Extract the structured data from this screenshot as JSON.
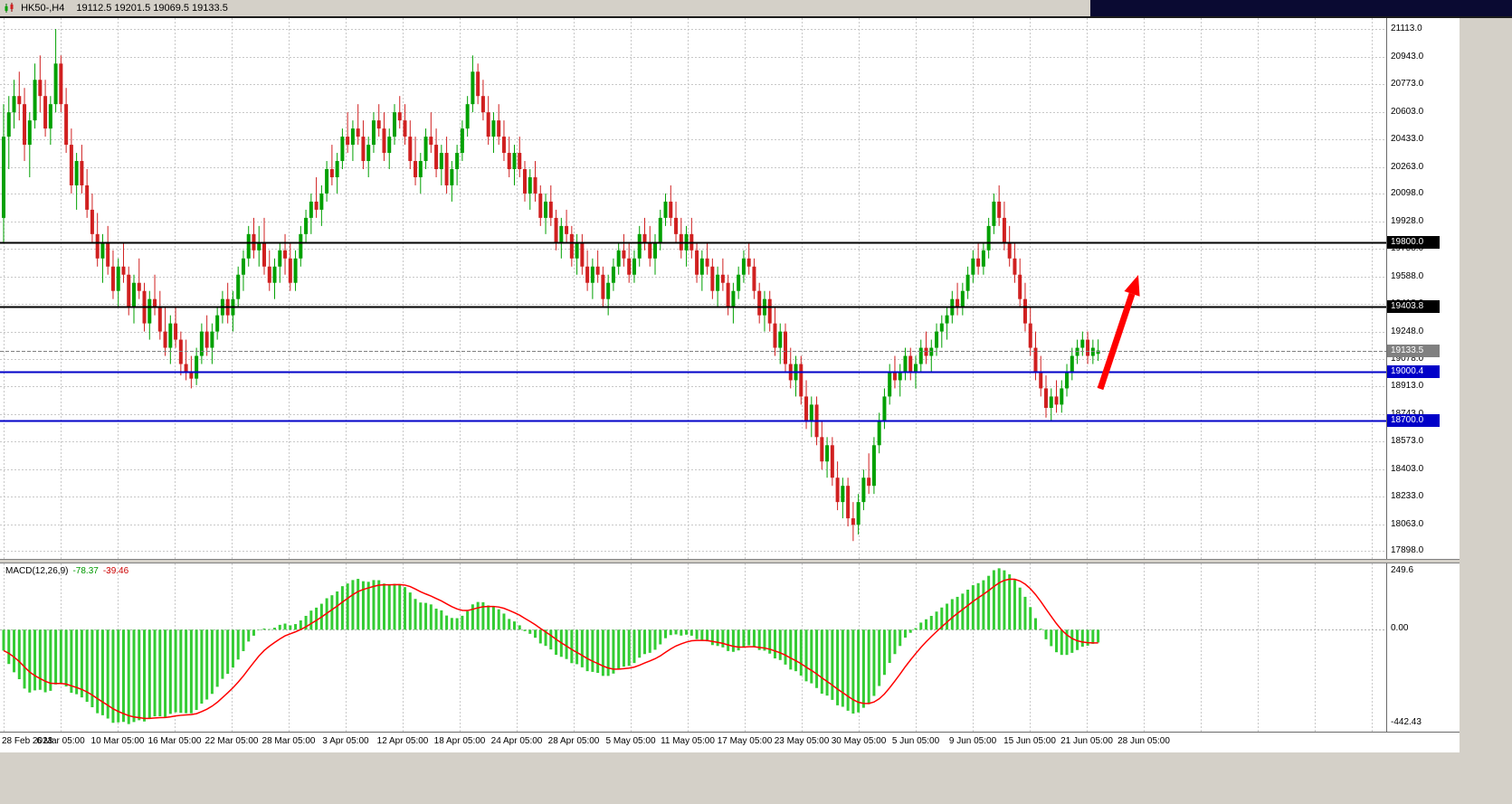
{
  "title_bar": {
    "symbol": "HK50-,H4",
    "ohlc_text": "19112.5 19201.5 19069.5 19133.5"
  },
  "colors": {
    "bull": "#00A000",
    "bear": "#D02020",
    "grid": "#C8C8C8",
    "background": "#FFFFFF",
    "chrome": "#D4D0C8",
    "histogram": "#33CC33",
    "signal_line": "#FF0000",
    "level_black": "#000000",
    "level_blue": "#0000C8",
    "current_price": "#808080",
    "arrow": "#FF0000",
    "top_bar_dark": "#0A0A32"
  },
  "macd": {
    "label": "MACD(12,26,9)",
    "value_main": "-78.37",
    "value_signal": "-39.46",
    "ticks": [
      "249.6",
      "0.00",
      "-442.43"
    ]
  },
  "chart_data": {
    "type": "candlestick",
    "symbol": "HK50-",
    "timeframe": "H4",
    "title": "HK50-,H4 19112.5 19201.5 19069.5 19133.5",
    "last_ohlc": {
      "open": 19112.5,
      "high": 19201.5,
      "low": 19069.5,
      "close": 19133.5
    },
    "ylim": [
      17850,
      21180
    ],
    "grid": "dashed",
    "price_ticks": [
      "21113.0",
      "20943.0",
      "20773.0",
      "20603.0",
      "20433.0",
      "20263.0",
      "20098.0",
      "19928.0",
      "19758.0",
      "19588.0",
      "19418.0",
      "19248.0",
      "19078.0",
      "18913.0",
      "18743.0",
      "18573.0",
      "18403.0",
      "18233.0",
      "18063.0",
      "17898.0"
    ],
    "x_labels": [
      "28 Feb 2023",
      "6 Mar 05:00",
      "10 Mar 05:00",
      "16 Mar 05:00",
      "22 Mar 05:00",
      "28 Mar 05:00",
      "3 Apr 05:00",
      "12 Apr 05:00",
      "18 Apr 05:00",
      "24 Apr 05:00",
      "28 Apr 05:00",
      "5 May 05:00",
      "11 May 05:00",
      "17 May 05:00",
      "23 May 05:00",
      "30 May 05:00",
      "5 Jun 05:00",
      "9 Jun 05:00",
      "15 Jun 05:00",
      "21 Jun 05:00",
      "28 Jun 05:00"
    ],
    "horizontal_lines": [
      {
        "price": 19800.0,
        "label": "19800.0",
        "color_key": "level_black",
        "width": 2,
        "style": "level"
      },
      {
        "price": 19403.8,
        "label": "19403.8",
        "color_key": "level_black",
        "width": 2,
        "style": "level"
      },
      {
        "price": 19133.5,
        "label": "19133.5",
        "color_key": "current_price",
        "width": 1,
        "style": "current"
      },
      {
        "price": 19000.4,
        "label": "19000.4",
        "color_key": "level_blue",
        "width": 2,
        "style": "level"
      },
      {
        "price": 18700.0,
        "label": "18700.0",
        "color_key": "level_blue",
        "width": 2,
        "style": "level"
      }
    ],
    "annotations": [
      {
        "type": "arrow",
        "from": [
          1216,
          410
        ],
        "to": [
          1258,
          284
        ],
        "color_key": "arrow"
      }
    ],
    "indicator": {
      "type": "macd",
      "fast": 12,
      "slow": 26,
      "signal": 9,
      "seed_close": 21600
    },
    "macd_axis": {
      "ylim": [
        -442.43,
        249.6
      ],
      "zero": 0.0
    },
    "candles": [
      [
        19950,
        20650,
        19800,
        20450
      ],
      [
        20450,
        20700,
        20250,
        20600
      ],
      [
        20600,
        20800,
        20500,
        20700
      ],
      [
        20700,
        20850,
        20550,
        20650
      ],
      [
        20650,
        20750,
        20300,
        20400
      ],
      [
        20400,
        20600,
        20200,
        20550
      ],
      [
        20550,
        20900,
        20500,
        20800
      ],
      [
        20800,
        20950,
        20600,
        20700
      ],
      [
        20700,
        20800,
        20450,
        20500
      ],
      [
        20500,
        20700,
        20400,
        20650
      ],
      [
        20650,
        21113,
        20600,
        20900
      ],
      [
        20900,
        20950,
        20600,
        20650
      ],
      [
        20650,
        20750,
        20350,
        20400
      ],
      [
        20400,
        20500,
        20100,
        20150
      ],
      [
        20150,
        20350,
        20000,
        20300
      ],
      [
        20300,
        20400,
        20100,
        20150
      ],
      [
        20150,
        20250,
        19950,
        20000
      ],
      [
        20000,
        20100,
        19800,
        19850
      ],
      [
        19850,
        19980,
        19650,
        19700
      ],
      [
        19700,
        19850,
        19550,
        19800
      ],
      [
        19800,
        19900,
        19600,
        19650
      ],
      [
        19650,
        19750,
        19450,
        19500
      ],
      [
        19500,
        19700,
        19400,
        19650
      ],
      [
        19650,
        19800,
        19550,
        19600
      ],
      [
        19600,
        19650,
        19350,
        19400
      ],
      [
        19400,
        19600,
        19300,
        19550
      ],
      [
        19550,
        19700,
        19450,
        19500
      ],
      [
        19500,
        19550,
        19250,
        19300
      ],
      [
        19300,
        19500,
        19200,
        19450
      ],
      [
        19450,
        19600,
        19350,
        19400
      ],
      [
        19400,
        19500,
        19200,
        19250
      ],
      [
        19250,
        19400,
        19100,
        19150
      ],
      [
        19150,
        19350,
        19050,
        19300
      ],
      [
        19300,
        19400,
        19150,
        19200
      ],
      [
        19200,
        19250,
        18980,
        19050
      ],
      [
        19050,
        19200,
        18950,
        19000
      ],
      [
        19000,
        19100,
        18900,
        18960
      ],
      [
        18960,
        19150,
        18920,
        19100
      ],
      [
        19100,
        19300,
        19050,
        19250
      ],
      [
        19250,
        19350,
        19100,
        19150
      ],
      [
        19150,
        19300,
        19050,
        19250
      ],
      [
        19250,
        19400,
        19200,
        19350
      ],
      [
        19350,
        19500,
        19300,
        19450
      ],
      [
        19450,
        19550,
        19300,
        19350
      ],
      [
        19350,
        19500,
        19250,
        19450
      ],
      [
        19450,
        19650,
        19400,
        19600
      ],
      [
        19600,
        19750,
        19500,
        19700
      ],
      [
        19700,
        19900,
        19650,
        19850
      ],
      [
        19850,
        19950,
        19700,
        19750
      ],
      [
        19750,
        19900,
        19650,
        19800
      ],
      [
        19800,
        19950,
        19600,
        19650
      ],
      [
        19650,
        19750,
        19500,
        19550
      ],
      [
        19550,
        19700,
        19450,
        19650
      ],
      [
        19650,
        19800,
        19550,
        19750
      ],
      [
        19750,
        19850,
        19600,
        19700
      ],
      [
        19700,
        19800,
        19500,
        19550
      ],
      [
        19550,
        19750,
        19500,
        19700
      ],
      [
        19700,
        19900,
        19650,
        19850
      ],
      [
        19850,
        20000,
        19800,
        19950
      ],
      [
        19950,
        20100,
        19850,
        20050
      ],
      [
        20050,
        20200,
        19950,
        20000
      ],
      [
        20000,
        20150,
        19900,
        20100
      ],
      [
        20100,
        20300,
        20050,
        20250
      ],
      [
        20250,
        20400,
        20150,
        20200
      ],
      [
        20200,
        20350,
        20100,
        20300
      ],
      [
        20300,
        20500,
        20250,
        20450
      ],
      [
        20450,
        20600,
        20350,
        20400
      ],
      [
        20400,
        20550,
        20300,
        20500
      ],
      [
        20500,
        20650,
        20400,
        20450
      ],
      [
        20450,
        20550,
        20250,
        20300
      ],
      [
        20300,
        20450,
        20200,
        20400
      ],
      [
        20400,
        20600,
        20350,
        20550
      ],
      [
        20550,
        20650,
        20450,
        20500
      ],
      [
        20500,
        20600,
        20300,
        20350
      ],
      [
        20350,
        20500,
        20250,
        20450
      ],
      [
        20450,
        20650,
        20400,
        20600
      ],
      [
        20600,
        20700,
        20500,
        20550
      ],
      [
        20550,
        20650,
        20400,
        20450
      ],
      [
        20450,
        20550,
        20250,
        20300
      ],
      [
        20300,
        20450,
        20150,
        20200
      ],
      [
        20200,
        20350,
        20100,
        20300
      ],
      [
        20300,
        20500,
        20250,
        20450
      ],
      [
        20450,
        20600,
        20350,
        20400
      ],
      [
        20400,
        20500,
        20200,
        20250
      ],
      [
        20250,
        20400,
        20150,
        20350
      ],
      [
        20350,
        20450,
        20100,
        20150
      ],
      [
        20150,
        20300,
        20050,
        20250
      ],
      [
        20250,
        20400,
        20150,
        20350
      ],
      [
        20350,
        20550,
        20300,
        20500
      ],
      [
        20500,
        20700,
        20450,
        20650
      ],
      [
        20650,
        20950,
        20600,
        20850
      ],
      [
        20850,
        20900,
        20650,
        20700
      ],
      [
        20700,
        20800,
        20550,
        20600
      ],
      [
        20600,
        20700,
        20400,
        20450
      ],
      [
        20450,
        20600,
        20350,
        20550
      ],
      [
        20550,
        20650,
        20400,
        20450
      ],
      [
        20450,
        20550,
        20300,
        20350
      ],
      [
        20350,
        20450,
        20200,
        20250
      ],
      [
        20250,
        20400,
        20150,
        20350
      ],
      [
        20350,
        20450,
        20200,
        20250
      ],
      [
        20250,
        20300,
        20050,
        20100
      ],
      [
        20100,
        20250,
        20000,
        20200
      ],
      [
        20200,
        20300,
        20050,
        20100
      ],
      [
        20100,
        20150,
        19900,
        19950
      ],
      [
        19950,
        20100,
        19850,
        20050
      ],
      [
        20050,
        20150,
        19900,
        19950
      ],
      [
        19950,
        20000,
        19750,
        19800
      ],
      [
        19800,
        19950,
        19700,
        19900
      ],
      [
        19900,
        20000,
        19800,
        19850
      ],
      [
        19850,
        19900,
        19650,
        19700
      ],
      [
        19700,
        19850,
        19600,
        19800
      ],
      [
        19800,
        19850,
        19600,
        19650
      ],
      [
        19650,
        19750,
        19500,
        19550
      ],
      [
        19550,
        19700,
        19450,
        19650
      ],
      [
        19650,
        19750,
        19550,
        19600
      ],
      [
        19600,
        19650,
        19400,
        19450
      ],
      [
        19450,
        19600,
        19350,
        19550
      ],
      [
        19550,
        19700,
        19500,
        19650
      ],
      [
        19650,
        19800,
        19600,
        19750
      ],
      [
        19750,
        19850,
        19650,
        19700
      ],
      [
        19700,
        19800,
        19550,
        19600
      ],
      [
        19600,
        19750,
        19550,
        19700
      ],
      [
        19700,
        19900,
        19650,
        19850
      ],
      [
        19850,
        19950,
        19750,
        19800
      ],
      [
        19800,
        19900,
        19650,
        19700
      ],
      [
        19700,
        19850,
        19600,
        19800
      ],
      [
        19800,
        20000,
        19750,
        19950
      ],
      [
        19950,
        20100,
        19900,
        20050
      ],
      [
        20050,
        20150,
        19900,
        19950
      ],
      [
        19950,
        20050,
        19800,
        19850
      ],
      [
        19850,
        19950,
        19700,
        19750
      ],
      [
        19750,
        19900,
        19650,
        19850
      ],
      [
        19850,
        19950,
        19700,
        19750
      ],
      [
        19750,
        19800,
        19550,
        19600
      ],
      [
        19600,
        19750,
        19500,
        19700
      ],
      [
        19700,
        19800,
        19600,
        19650
      ],
      [
        19650,
        19700,
        19450,
        19500
      ],
      [
        19500,
        19650,
        19400,
        19600
      ],
      [
        19600,
        19700,
        19500,
        19550
      ],
      [
        19550,
        19600,
        19350,
        19400
      ],
      [
        19400,
        19550,
        19300,
        19500
      ],
      [
        19500,
        19650,
        19450,
        19600
      ],
      [
        19600,
        19750,
        19550,
        19700
      ],
      [
        19700,
        19800,
        19600,
        19650
      ],
      [
        19650,
        19700,
        19450,
        19500
      ],
      [
        19500,
        19550,
        19300,
        19350
      ],
      [
        19350,
        19500,
        19250,
        19450
      ],
      [
        19450,
        19500,
        19250,
        19300
      ],
      [
        19300,
        19400,
        19100,
        19150
      ],
      [
        19150,
        19300,
        19050,
        19250
      ],
      [
        19250,
        19300,
        19000,
        19050
      ],
      [
        19050,
        19150,
        18900,
        18950
      ],
      [
        18950,
        19100,
        18850,
        19050
      ],
      [
        19050,
        19100,
        18800,
        18850
      ],
      [
        18850,
        18950,
        18650,
        18700
      ],
      [
        18700,
        18850,
        18600,
        18800
      ],
      [
        18800,
        18850,
        18550,
        18600
      ],
      [
        18600,
        18700,
        18400,
        18450
      ],
      [
        18450,
        18600,
        18350,
        18550
      ],
      [
        18550,
        18600,
        18300,
        18350
      ],
      [
        18350,
        18450,
        18150,
        18200
      ],
      [
        18200,
        18350,
        18100,
        18300
      ],
      [
        18300,
        18350,
        18050,
        18100
      ],
      [
        18100,
        18200,
        17960,
        18060
      ],
      [
        18060,
        18250,
        18000,
        18200
      ],
      [
        18200,
        18400,
        18150,
        18350
      ],
      [
        18350,
        18500,
        18250,
        18300
      ],
      [
        18300,
        18600,
        18250,
        18550
      ],
      [
        18550,
        18750,
        18500,
        18700
      ],
      [
        18700,
        18900,
        18650,
        18850
      ],
      [
        18850,
        19050,
        18800,
        19000
      ],
      [
        19000,
        19100,
        18900,
        18950
      ],
      [
        18950,
        19050,
        18850,
        19000
      ],
      [
        19000,
        19150,
        18950,
        19100
      ],
      [
        19100,
        19150,
        18950,
        19000
      ],
      [
        19000,
        19100,
        18900,
        19050
      ],
      [
        19050,
        19200,
        19000,
        19150
      ],
      [
        19150,
        19250,
        19050,
        19100
      ],
      [
        19100,
        19200,
        19000,
        19150
      ],
      [
        19150,
        19300,
        19100,
        19250
      ],
      [
        19250,
        19350,
        19150,
        19300
      ],
      [
        19300,
        19400,
        19200,
        19350
      ],
      [
        19350,
        19500,
        19300,
        19450
      ],
      [
        19450,
        19550,
        19350,
        19400
      ],
      [
        19400,
        19550,
        19350,
        19500
      ],
      [
        19500,
        19650,
        19450,
        19600
      ],
      [
        19600,
        19750,
        19550,
        19700
      ],
      [
        19700,
        19800,
        19600,
        19650
      ],
      [
        19650,
        19800,
        19600,
        19750
      ],
      [
        19750,
        19950,
        19700,
        19900
      ],
      [
        19900,
        20100,
        19850,
        20050
      ],
      [
        20050,
        20150,
        19900,
        19950
      ],
      [
        19950,
        20050,
        19750,
        19800
      ],
      [
        19800,
        19900,
        19650,
        19700
      ],
      [
        19700,
        19800,
        19550,
        19600
      ],
      [
        19600,
        19700,
        19400,
        19450
      ],
      [
        19450,
        19550,
        19250,
        19300
      ],
      [
        19300,
        19400,
        19100,
        19150
      ],
      [
        19150,
        19250,
        18950,
        19000
      ],
      [
        19000,
        19100,
        18850,
        18900
      ],
      [
        18900,
        18980,
        18720,
        18780
      ],
      [
        18780,
        18900,
        18700,
        18850
      ],
      [
        18850,
        18950,
        18750,
        18800
      ],
      [
        18800,
        18950,
        18750,
        18900
      ],
      [
        18900,
        19050,
        18850,
        19000
      ],
      [
        19000,
        19150,
        18950,
        19100
      ],
      [
        19100,
        19200,
        19050,
        19150
      ],
      [
        19150,
        19250,
        19100,
        19200
      ],
      [
        19200,
        19250,
        19050,
        19100
      ],
      [
        19100,
        19200,
        19050,
        19150
      ],
      [
        19112.5,
        19201.5,
        19069.5,
        19133.5
      ]
    ]
  }
}
